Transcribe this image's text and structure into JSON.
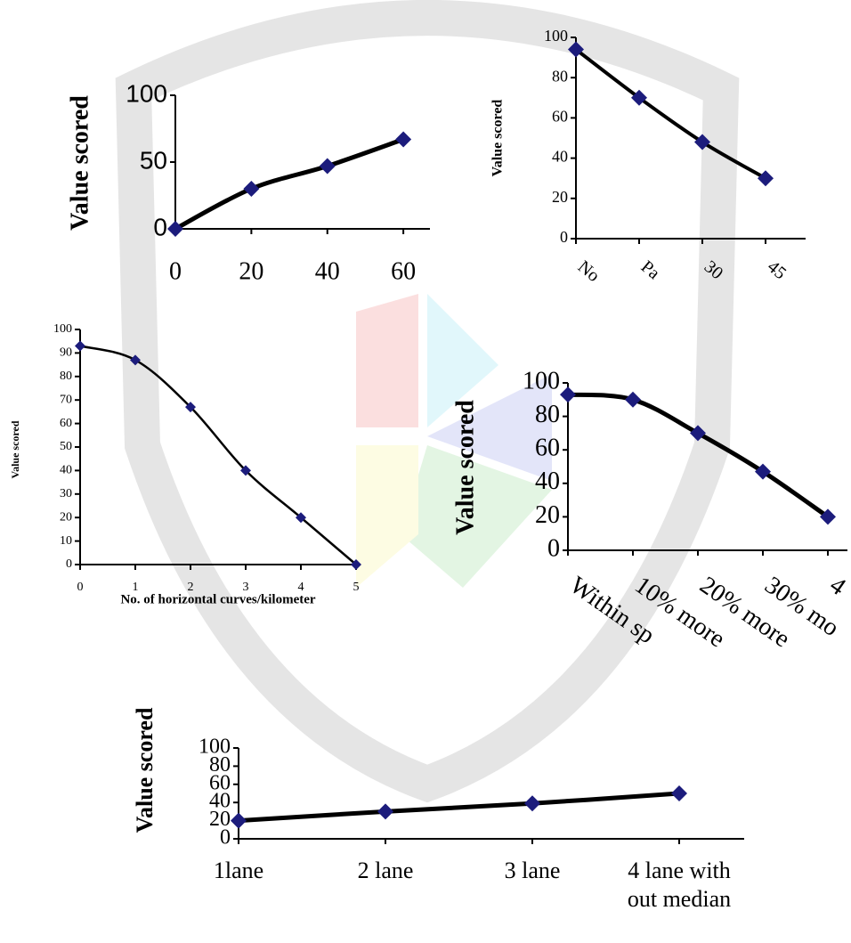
{
  "chart_data": [
    {
      "type": "line",
      "ylabel": "Value scored",
      "x": [
        0,
        20,
        40,
        60
      ],
      "values": [
        0,
        30,
        47,
        67
      ],
      "xlim": [
        0,
        67
      ],
      "ylim": [
        0,
        100
      ],
      "xticks": [
        0,
        20,
        40,
        60
      ],
      "yticks": [
        0,
        50,
        100
      ],
      "color": "#000000",
      "marker_color": "#1c1c7c"
    },
    {
      "type": "line",
      "ylabel": "Value scored",
      "categories": [
        "No",
        "Pa",
        "30",
        "45"
      ],
      "values": [
        94,
        70,
        48,
        30
      ],
      "ylim": [
        0,
        100
      ],
      "yticks": [
        0,
        20,
        40,
        60,
        80,
        100
      ],
      "color": "#000000",
      "marker_color": "#1c1c7c"
    },
    {
      "type": "line",
      "ylabel": "Value scored",
      "xlabel": "No. of horizontal curves/kilometer",
      "x": [
        0,
        1,
        2,
        3,
        4,
        5
      ],
      "values": [
        93,
        87,
        67,
        40,
        20,
        0
      ],
      "xlim": [
        0,
        5
      ],
      "ylim": [
        0,
        100
      ],
      "xticks": [
        0,
        1,
        2,
        3,
        4,
        5
      ],
      "yticks": [
        0,
        10,
        20,
        30,
        40,
        50,
        60,
        70,
        80,
        90,
        100
      ],
      "color": "#000000",
      "marker_color": "#1c1c7c"
    },
    {
      "type": "line",
      "ylabel": "Value scored",
      "categories": [
        "Within sp",
        "10% more",
        "20% more",
        "30% mo",
        "4"
      ],
      "values": [
        93,
        90,
        70,
        47,
        20
      ],
      "ylim": [
        0,
        100
      ],
      "yticks": [
        0,
        20,
        40,
        60,
        80,
        100
      ],
      "color": "#000000",
      "marker_color": "#1c1c7c"
    },
    {
      "type": "line",
      "ylabel": "Value scored",
      "categories": [
        "1lane",
        "2 lane",
        "3 lane",
        "4 lane with out median"
      ],
      "values": [
        20,
        30,
        39,
        50
      ],
      "ylim": [
        0,
        100
      ],
      "yticks": [
        0,
        20,
        40,
        60,
        80,
        100
      ],
      "color": "#000000",
      "marker_color": "#1c1c7c"
    }
  ]
}
